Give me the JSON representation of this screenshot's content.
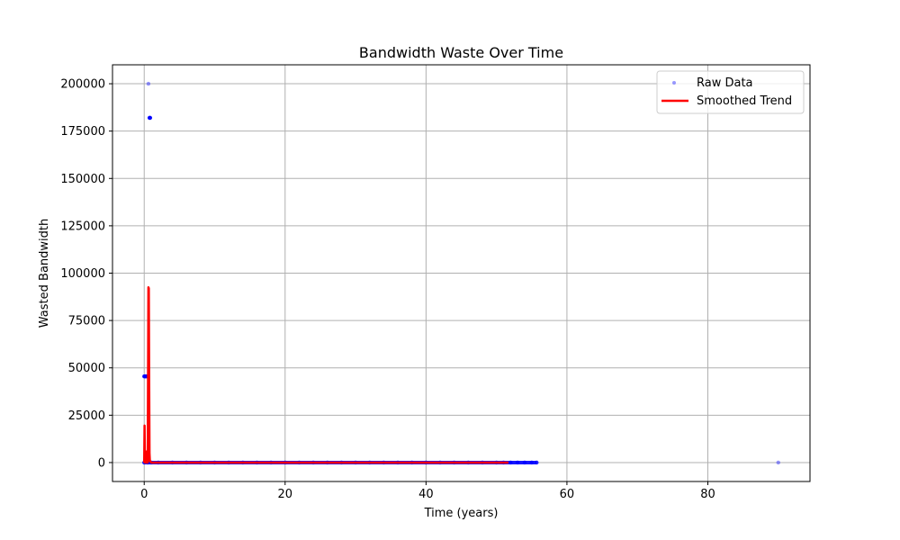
{
  "chart_data": {
    "type": "scatter",
    "title": "Bandwidth Waste Over Time",
    "xlabel": "Time (years)",
    "ylabel": "Wasted Bandwidth",
    "xlim": [
      -4.5,
      94.5
    ],
    "ylim": [
      -10000,
      210000
    ],
    "xticks": [
      0,
      20,
      40,
      60,
      80
    ],
    "yticks": [
      0,
      25000,
      50000,
      75000,
      100000,
      125000,
      150000,
      175000,
      200000
    ],
    "grid": true,
    "legend": {
      "position": "top-right",
      "entries": [
        "Raw Data",
        "Smoothed Trend"
      ]
    },
    "series": [
      {
        "name": "Raw Data",
        "kind": "scatter",
        "color": "#0000ff",
        "points": [
          [
            0.6,
            200000
          ],
          [
            0.75,
            182000
          ],
          [
            0.8,
            182000
          ],
          [
            0.85,
            182000
          ],
          [
            0.0,
            45500
          ],
          [
            0.1,
            45500
          ],
          [
            0.2,
            45500
          ],
          [
            0.3,
            45500
          ],
          [
            0.45,
            45500
          ],
          [
            0.55,
            45500
          ],
          [
            0.0,
            0
          ],
          [
            0.5,
            0
          ],
          [
            1.0,
            0
          ],
          [
            2,
            0
          ],
          [
            4,
            0
          ],
          [
            6,
            0
          ],
          [
            8,
            0
          ],
          [
            10,
            0
          ],
          [
            12,
            0
          ],
          [
            14,
            0
          ],
          [
            16,
            0
          ],
          [
            18,
            0
          ],
          [
            20,
            0
          ],
          [
            22,
            0
          ],
          [
            24,
            0
          ],
          [
            26,
            0
          ],
          [
            28,
            0
          ],
          [
            30,
            0
          ],
          [
            32,
            0
          ],
          [
            34,
            0
          ],
          [
            36,
            0
          ],
          [
            38,
            0
          ],
          [
            40,
            0
          ],
          [
            42,
            0
          ],
          [
            44,
            0
          ],
          [
            46,
            0
          ],
          [
            48,
            0
          ],
          [
            50,
            0
          ],
          [
            51,
            0
          ],
          [
            52,
            0
          ],
          [
            53,
            0
          ],
          [
            54,
            0
          ],
          [
            55,
            0
          ],
          [
            55.7,
            0
          ],
          [
            90,
            0
          ]
        ]
      },
      {
        "name": "Smoothed Trend",
        "kind": "line",
        "color": "#ff0000",
        "points": [
          [
            0.0,
            0
          ],
          [
            0.05,
            19500
          ],
          [
            0.1,
            0
          ],
          [
            0.2,
            6000
          ],
          [
            0.3,
            0
          ],
          [
            0.4,
            5000
          ],
          [
            0.5,
            0
          ],
          [
            0.55,
            45000
          ],
          [
            0.6,
            92500
          ],
          [
            0.65,
            92000
          ],
          [
            0.7,
            45000
          ],
          [
            0.75,
            5000
          ],
          [
            0.8,
            1000
          ],
          [
            1.0,
            0
          ],
          [
            2,
            0
          ],
          [
            10,
            0
          ],
          [
            20,
            0
          ],
          [
            30,
            0
          ],
          [
            40,
            0
          ],
          [
            48,
            0
          ],
          [
            51.7,
            0
          ]
        ]
      }
    ]
  }
}
